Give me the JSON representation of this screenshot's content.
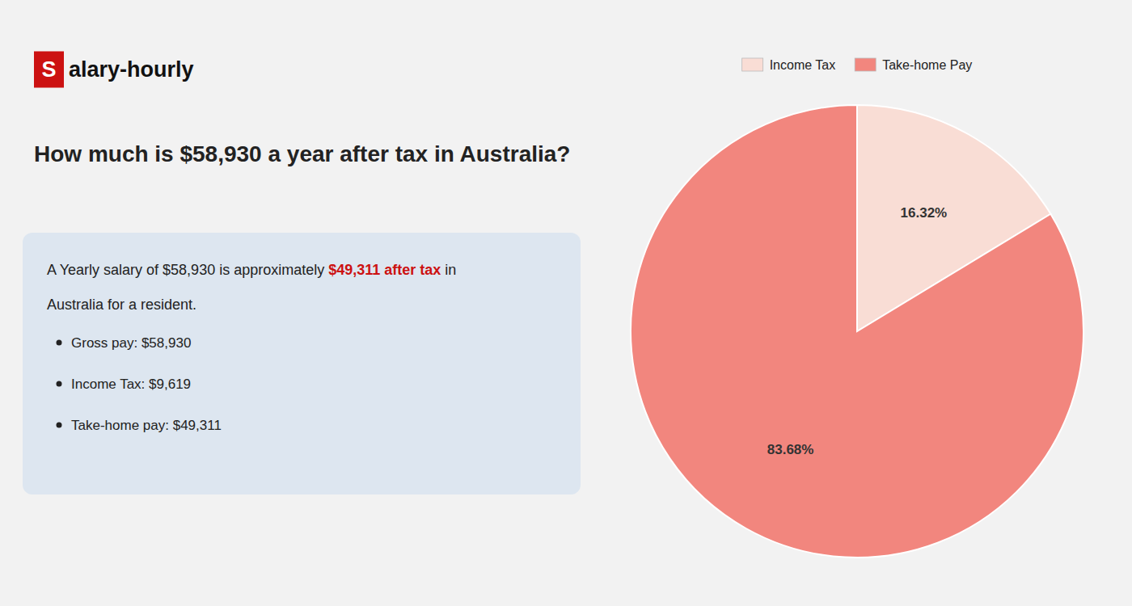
{
  "chart_data": {
    "type": "pie",
    "title": "How much is $58,930 a year after tax in Australia?",
    "annotations": [
      {
        "text": "S",
        "color": "#cc1111"
      },
      {
        "text": "alary-hourly"
      },
      {
        "text": "A Yearly salary of $58,930 is approximately "
      },
      {
        "text": "$49,311 after tax",
        "color": "#cc1111"
      },
      {
        "text": " in"
      },
      {
        "text": "Australia for a resident."
      },
      {
        "text": "Gross pay: $58,930"
      },
      {
        "text": "Income Tax: $9,619"
      },
      {
        "text": "Take-home pay: $49,311"
      }
    ],
    "categories": [
      "Income Tax",
      "Take-home Pay"
    ],
    "values": [
      16.32,
      83.68
    ],
    "value_labels": [
      "16.32%",
      "83.68%"
    ],
    "data_labels": true,
    "colors": [
      "#f9ddd5",
      "#f2867e"
    ],
    "legend": "top"
  }
}
